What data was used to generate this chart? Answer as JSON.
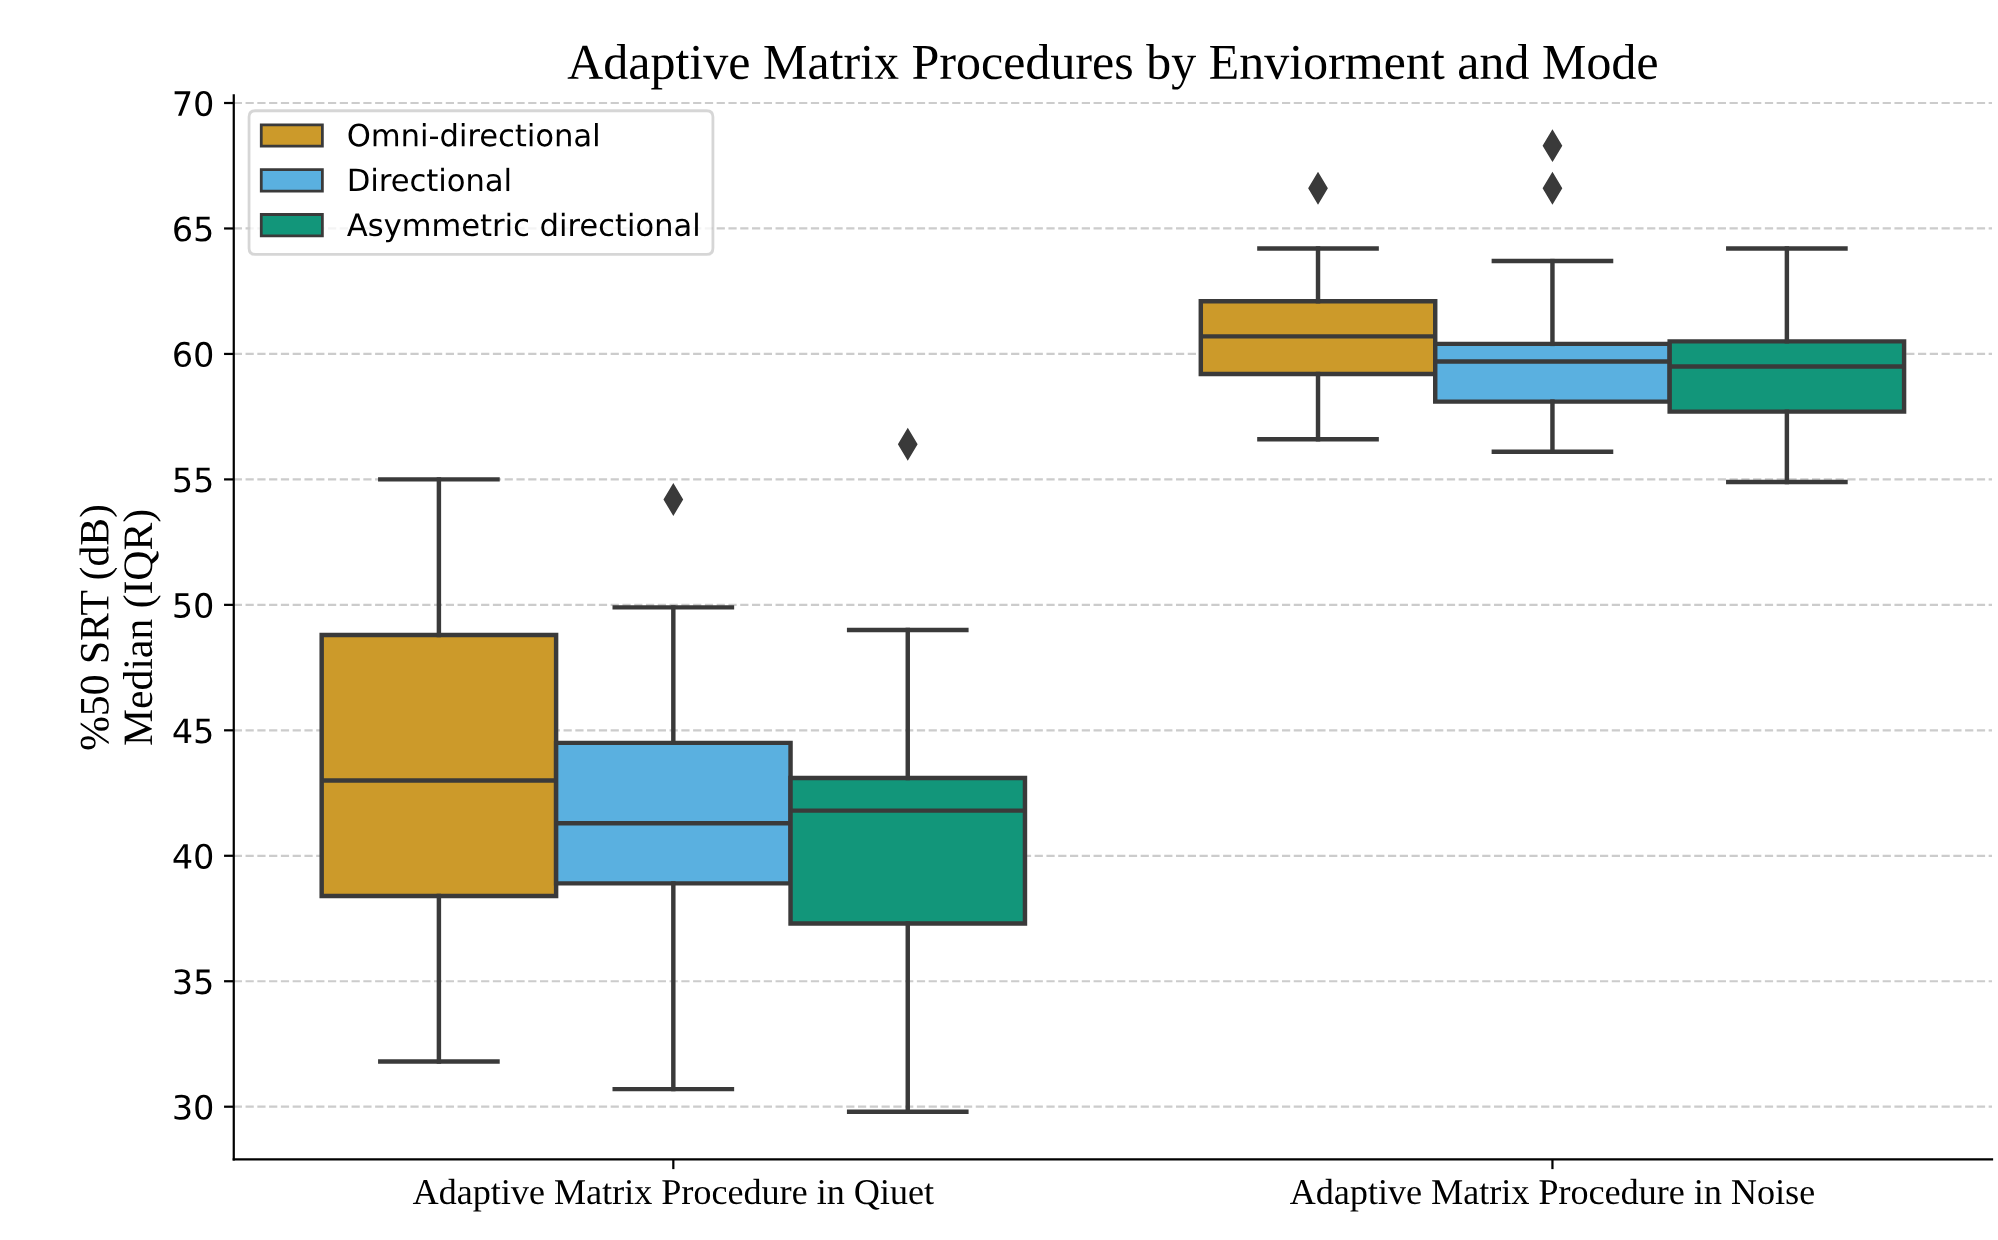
{
  "chart_data": {
    "type": "box",
    "title": "Adaptive Matrix Procedures by Enviorment and Mode",
    "ylabel": "%50 SRT (dB)\nMedian (IQR)",
    "categories": [
      "Adaptive Matrix Procedure in Qiuet",
      "Adaptive Matrix Procedure in Noise"
    ],
    "series": [
      {
        "name": "Omni-directional",
        "color": "#cc9a2a",
        "boxes": [
          {
            "low": 31.8,
            "q1": 38.4,
            "median": 43.0,
            "q3": 48.8,
            "high": 55.0
          },
          {
            "low": 56.6,
            "q1": 59.2,
            "median": 60.7,
            "q3": 62.1,
            "high": 64.2,
            "outliers": [
              66.6
            ]
          }
        ]
      },
      {
        "name": "Directional",
        "color": "#5ab0e0",
        "boxes": [
          {
            "low": 30.7,
            "q1": 38.9,
            "median": 41.3,
            "q3": 44.5,
            "high": 49.9,
            "outliers": [
              54.2
            ]
          },
          {
            "low": 56.1,
            "q1": 58.1,
            "median": 59.7,
            "q3": 60.4,
            "high": 63.7,
            "outliers": [
              66.6,
              68.3
            ]
          }
        ]
      },
      {
        "name": "Asymmetric directional",
        "color": "#12967a",
        "boxes": [
          {
            "low": 29.8,
            "q1": 37.3,
            "median": 41.8,
            "q3": 43.1,
            "high": 49.0,
            "outliers": [
              56.4
            ]
          },
          {
            "low": 54.9,
            "q1": 57.7,
            "median": 59.5,
            "q3": 60.5,
            "high": 64.2
          }
        ]
      }
    ],
    "ylim": [
      27.9,
      70.3
    ],
    "yticks": [
      30,
      35,
      40,
      45,
      50,
      55,
      60,
      65,
      70
    ],
    "grid": "y",
    "legend": "top left",
    "marker": "diamond"
  }
}
